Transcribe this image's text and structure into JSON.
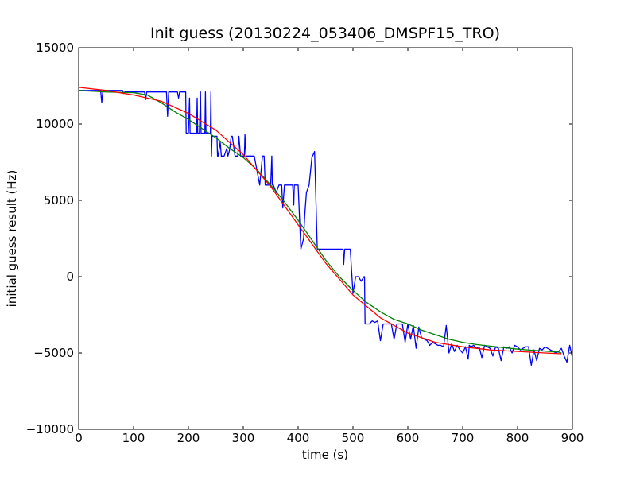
{
  "chart_data": {
    "type": "line",
    "title": "Init guess (20130224_053406_DMSPF15_TRO)",
    "xlabel": "time (s)",
    "ylabel": "initial guess result (Hz)",
    "xlim": [
      0,
      900
    ],
    "ylim": [
      -10000,
      15000
    ],
    "xticks": [
      0,
      100,
      200,
      300,
      400,
      500,
      600,
      700,
      800,
      900
    ],
    "yticks": [
      -10000,
      -5000,
      0,
      5000,
      10000,
      15000
    ],
    "xtick_labels": [
      "0",
      "100",
      "200",
      "300",
      "400",
      "500",
      "600",
      "700",
      "800",
      "900"
    ],
    "ytick_labels": [
      "−10000",
      "−5000",
      "0",
      "5000",
      "10000",
      "15000"
    ],
    "grid": false,
    "legend": false,
    "series": [
      {
        "color": "#0000ff",
        "x": [
          0,
          40,
          42,
          44,
          80,
          82,
          84,
          120,
          122,
          124,
          160,
          162,
          164,
          180,
          182,
          184,
          186,
          195,
          196,
          197,
          200,
          202,
          203,
          204,
          205,
          215,
          216,
          217,
          218,
          220,
          222,
          223,
          224,
          225,
          230,
          231,
          232,
          233,
          234,
          240,
          241,
          242,
          243,
          244,
          248,
          250,
          252,
          253,
          254,
          258,
          260,
          262,
          263,
          264,
          265,
          270,
          272,
          275,
          278,
          280,
          285,
          290,
          292,
          295,
          300,
          302,
          303,
          305,
          310,
          312,
          315,
          320,
          330,
          335,
          338,
          340,
          345,
          350,
          352,
          353,
          355,
          360,
          365,
          370,
          372,
          375,
          380,
          385,
          390,
          392,
          393,
          395,
          400,
          405,
          410,
          412,
          415,
          420,
          425,
          430,
          435,
          438,
          440,
          441,
          442,
          443,
          445,
          460,
          480,
          481,
          482,
          483,
          485,
          490,
          495,
          500,
          505,
          510,
          515,
          520,
          521,
          522,
          523,
          525,
          530,
          535,
          540,
          545,
          550,
          555,
          560,
          565,
          570,
          575,
          580,
          585,
          590,
          595,
          600,
          605,
          610,
          615,
          620,
          625,
          630,
          635,
          640,
          645,
          650,
          655,
          660,
          665,
          670,
          675,
          680,
          685,
          690,
          695,
          700,
          705,
          710,
          712,
          715,
          720,
          725,
          730,
          735,
          740,
          745,
          750,
          755,
          760,
          765,
          770,
          775,
          780,
          785,
          790,
          795,
          800,
          805,
          810,
          815,
          820,
          825,
          830,
          835,
          840,
          845,
          850,
          855,
          860,
          865,
          870,
          875,
          880,
          885,
          890,
          895,
          900
        ],
        "y": [
          12200,
          12200,
          11400,
          12200,
          12200,
          12000,
          12100,
          12100,
          11600,
          12100,
          12100,
          10500,
          12100,
          12100,
          11700,
          12100,
          12100,
          12100,
          9400,
          9400,
          9400,
          11700,
          9400,
          9400,
          9400,
          9400,
          11700,
          9400,
          9400,
          9400,
          12100,
          9400,
          9400,
          9400,
          9400,
          12100,
          9400,
          9400,
          9400,
          9400,
          12100,
          7900,
          9200,
          9200,
          9200,
          9200,
          9200,
          7900,
          7900,
          8800,
          7900,
          7900,
          7900,
          7900,
          7900,
          8400,
          7900,
          8300,
          9200,
          9200,
          7900,
          7900,
          9200,
          7900,
          7900,
          7900,
          9300,
          7900,
          7900,
          7900,
          7900,
          7900,
          6000,
          7900,
          7900,
          6000,
          6000,
          6000,
          7900,
          6000,
          6000,
          5500,
          6000,
          6000,
          4500,
          6000,
          6000,
          6000,
          6000,
          4700,
          6000,
          6000,
          6000,
          1800,
          2500,
          4000,
          5500,
          6000,
          7800,
          8200,
          1800,
          1800,
          1800,
          1800,
          1800,
          1800,
          1800,
          1800,
          1800,
          1800,
          1800,
          800,
          1800,
          1800,
          1800,
          -1100,
          0,
          0,
          -300,
          0,
          0,
          -3100,
          -3100,
          -3100,
          -3100,
          -2900,
          -3000,
          -2900,
          -4200,
          -3100,
          -3100,
          -3100,
          -3100,
          -4100,
          -3100,
          -3100,
          -3100,
          -4300,
          -3100,
          -4100,
          -3200,
          -4700,
          -3300,
          -4000,
          -4100,
          -4200,
          -4500,
          -4300,
          -4400,
          -4500,
          -4500,
          -4600,
          -3200,
          -5000,
          -4400,
          -4900,
          -4500,
          -4800,
          -5000,
          -4600,
          -5400,
          -4500,
          -4600,
          -4500,
          -4700,
          -4600,
          -5300,
          -4500,
          -4600,
          -4700,
          -5200,
          -4600,
          -4700,
          -5500,
          -4600,
          -4700,
          -4600,
          -5000,
          -4500,
          -4600,
          -4800,
          -4700,
          -4600,
          -4600,
          -5800,
          -4800,
          -5500,
          -4700,
          -4800,
          -4600,
          -4700,
          -4800,
          -4900,
          -5000,
          -4900,
          -4700,
          -5200,
          -5600,
          -4500,
          -5300
        ]
      },
      {
        "color": "#008000",
        "x": [
          0,
          50,
          100,
          125,
          150,
          175,
          200,
          225,
          250,
          275,
          300,
          325,
          350,
          375,
          400,
          425,
          450,
          475,
          500,
          525,
          550,
          575,
          600,
          625,
          650,
          675,
          700,
          725,
          750,
          775,
          800,
          825,
          850,
          875,
          880
        ],
        "y": [
          12200,
          12100,
          12050,
          11900,
          11400,
          10800,
          10300,
          9700,
          9100,
          8400,
          7800,
          7000,
          6000,
          4900,
          3700,
          2400,
          1100,
          0,
          -900,
          -1700,
          -2300,
          -2800,
          -3100,
          -3500,
          -3800,
          -4100,
          -4300,
          -4450,
          -4550,
          -4650,
          -4750,
          -4820,
          -4880,
          -4950,
          -5000
        ]
      },
      {
        "color": "#ff0000",
        "x": [
          0,
          50,
          100,
          150,
          200,
          250,
          300,
          350,
          400,
          450,
          500,
          550,
          600,
          650,
          700,
          750,
          800,
          850,
          880
        ],
        "y": [
          12400,
          12200,
          11900,
          11500,
          10700,
          9600,
          8000,
          5900,
          3400,
          900,
          -1200,
          -2700,
          -3700,
          -4300,
          -4600,
          -4800,
          -4900,
          -5000,
          -5050
        ]
      }
    ]
  }
}
